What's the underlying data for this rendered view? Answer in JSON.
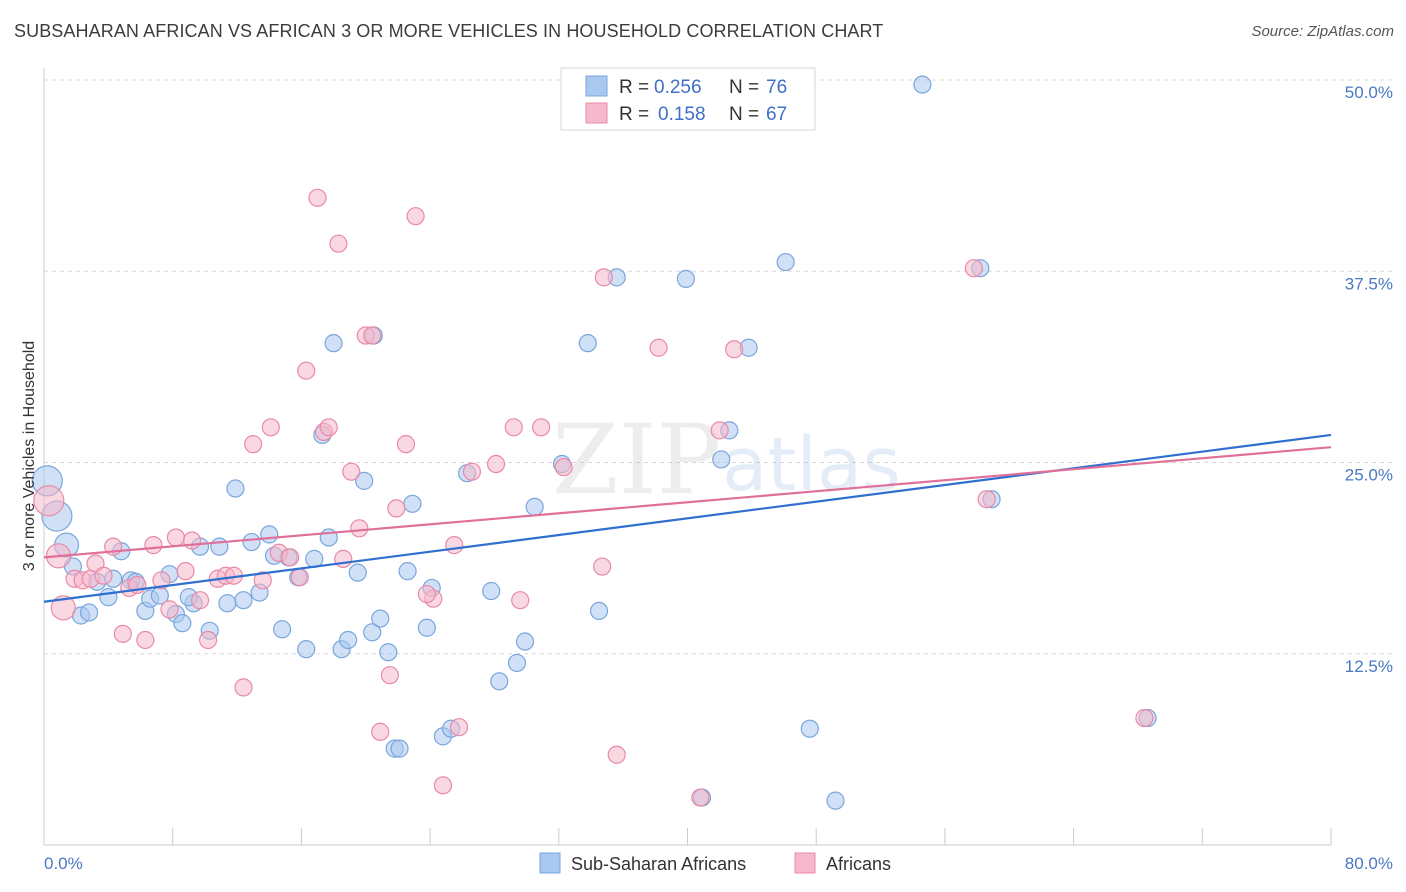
{
  "title": "SUBSAHARAN AFRICAN VS AFRICAN 3 OR MORE VEHICLES IN HOUSEHOLD CORRELATION CHART",
  "source": "Source: ZipAtlas.com",
  "watermark": {
    "zip": "ZIP",
    "atlas": "atlas"
  },
  "colors": {
    "blue_fill": "#a9c8f0",
    "blue_stroke": "#7aa6dc",
    "blue_line": "#2f6fd0",
    "pink_fill": "#f6b8cb",
    "pink_stroke": "#e88aa8",
    "pink_line": "#e0709a",
    "label": "#4a78c2",
    "grid": "#d8d8d8"
  },
  "legend": {
    "rows": [
      {
        "r_label": "R = ",
        "r_value": "0.256",
        "n_label": "N = ",
        "n_value": "76"
      },
      {
        "r_label": "R = ",
        "r_value": "0.158",
        "n_label": "N = ",
        "n_value": "67"
      }
    ]
  },
  "chart_data": {
    "type": "scatter",
    "title": "SUBSAHARAN AFRICAN VS AFRICAN 3 OR MORE VEHICLES IN HOUSEHOLD CORRELATION CHART",
    "xlabel": "",
    "ylabel": "3 or more Vehicles in Household",
    "xlim": [
      0,
      80
    ],
    "ylim": [
      0,
      50
    ],
    "x_tick_labels": [
      "0.0%",
      "80.0%"
    ],
    "y_ticks": [
      12.5,
      25.0,
      37.5,
      50.0
    ],
    "y_tick_labels": [
      "12.5%",
      "25.0%",
      "37.5%",
      "50.0%"
    ],
    "grid": true,
    "legend_position": "bottom",
    "series": [
      {
        "name": "Sub-Saharan Africans",
        "color": "#a9c8f0",
        "trend": [
          [
            0,
            15.9
          ],
          [
            80,
            26.8
          ]
        ],
        "points": [
          [
            0.2,
            23.8
          ],
          [
            0.8,
            21.5
          ],
          [
            1.4,
            19.6
          ],
          [
            1.8,
            18.2
          ],
          [
            2.3,
            15.0
          ],
          [
            2.8,
            15.2
          ],
          [
            3.3,
            17.2
          ],
          [
            4.0,
            16.2
          ],
          [
            4.3,
            17.4
          ],
          [
            4.8,
            19.2
          ],
          [
            5.4,
            17.3
          ],
          [
            5.7,
            17.2
          ],
          [
            6.3,
            15.3
          ],
          [
            6.6,
            16.1
          ],
          [
            7.2,
            16.3
          ],
          [
            7.8,
            17.7
          ],
          [
            8.2,
            15.1
          ],
          [
            8.6,
            14.5
          ],
          [
            9.3,
            15.8
          ],
          [
            9.7,
            19.5
          ],
          [
            10.3,
            14.0
          ],
          [
            10.9,
            19.5
          ],
          [
            11.4,
            15.8
          ],
          [
            11.9,
            23.3
          ],
          [
            12.4,
            16.0
          ],
          [
            12.9,
            19.8
          ],
          [
            13.4,
            16.5
          ],
          [
            14.0,
            20.3
          ],
          [
            14.8,
            14.1
          ],
          [
            15.2,
            18.8
          ],
          [
            15.8,
            17.5
          ],
          [
            16.3,
            12.8
          ],
          [
            16.8,
            18.7
          ],
          [
            17.3,
            26.8
          ],
          [
            17.7,
            20.1
          ],
          [
            18.0,
            32.8
          ],
          [
            18.5,
            12.8
          ],
          [
            18.9,
            13.4
          ],
          [
            19.5,
            17.8
          ],
          [
            19.9,
            23.8
          ],
          [
            20.4,
            13.9
          ],
          [
            20.9,
            14.8
          ],
          [
            21.4,
            12.6
          ],
          [
            21.8,
            6.3
          ],
          [
            22.1,
            6.3
          ],
          [
            22.6,
            17.9
          ],
          [
            22.9,
            22.3
          ],
          [
            23.8,
            14.2
          ],
          [
            24.1,
            16.8
          ],
          [
            24.8,
            7.1
          ],
          [
            25.3,
            7.6
          ],
          [
            26.3,
            24.3
          ],
          [
            28.3,
            10.7
          ],
          [
            29.4,
            11.9
          ],
          [
            29.9,
            13.3
          ],
          [
            32.2,
            24.9
          ],
          [
            33.8,
            32.8
          ],
          [
            35.6,
            37.1
          ],
          [
            39.9,
            37.0
          ],
          [
            40.9,
            3.1
          ],
          [
            42.1,
            25.2
          ],
          [
            42.6,
            27.1
          ],
          [
            43.8,
            32.5
          ],
          [
            46.1,
            38.1
          ],
          [
            47.6,
            7.6
          ],
          [
            49.2,
            2.9
          ],
          [
            54.6,
            49.7
          ],
          [
            58.2,
            37.7
          ],
          [
            58.9,
            22.6
          ],
          [
            68.6,
            8.3
          ],
          [
            20.5,
            33.3
          ],
          [
            14.3,
            18.9
          ],
          [
            9.0,
            16.2
          ],
          [
            27.8,
            16.6
          ],
          [
            34.5,
            15.3
          ],
          [
            30.5,
            22.1
          ]
        ]
      },
      {
        "name": "Africans",
        "color": "#f6b8cb",
        "trend": [
          [
            0,
            18.8
          ],
          [
            80,
            26.0
          ]
        ],
        "points": [
          [
            0.3,
            22.5
          ],
          [
            0.9,
            18.9
          ],
          [
            1.2,
            15.5
          ],
          [
            1.9,
            17.4
          ],
          [
            2.4,
            17.3
          ],
          [
            2.9,
            17.4
          ],
          [
            3.2,
            18.4
          ],
          [
            3.7,
            17.6
          ],
          [
            4.3,
            19.5
          ],
          [
            4.9,
            13.8
          ],
          [
            5.3,
            16.8
          ],
          [
            5.8,
            17.0
          ],
          [
            6.3,
            13.4
          ],
          [
            6.8,
            19.6
          ],
          [
            7.3,
            17.3
          ],
          [
            7.8,
            15.4
          ],
          [
            8.2,
            20.1
          ],
          [
            8.8,
            17.9
          ],
          [
            9.2,
            19.9
          ],
          [
            9.7,
            16.0
          ],
          [
            10.2,
            13.4
          ],
          [
            10.8,
            17.4
          ],
          [
            11.3,
            17.6
          ],
          [
            11.8,
            17.6
          ],
          [
            12.4,
            10.3
          ],
          [
            13.0,
            26.2
          ],
          [
            13.6,
            17.3
          ],
          [
            14.1,
            27.3
          ],
          [
            14.6,
            19.1
          ],
          [
            15.3,
            18.8
          ],
          [
            15.9,
            17.5
          ],
          [
            16.3,
            31.0
          ],
          [
            17.0,
            42.3
          ],
          [
            17.4,
            27.0
          ],
          [
            17.7,
            27.3
          ],
          [
            18.3,
            39.3
          ],
          [
            18.6,
            18.7
          ],
          [
            19.1,
            24.4
          ],
          [
            19.6,
            20.7
          ],
          [
            20.0,
            33.3
          ],
          [
            20.4,
            33.3
          ],
          [
            20.9,
            7.4
          ],
          [
            21.5,
            11.1
          ],
          [
            21.9,
            22.0
          ],
          [
            22.5,
            26.2
          ],
          [
            23.1,
            41.1
          ],
          [
            24.2,
            16.1
          ],
          [
            24.8,
            3.9
          ],
          [
            25.8,
            7.7
          ],
          [
            26.6,
            24.4
          ],
          [
            28.1,
            24.9
          ],
          [
            29.6,
            16.0
          ],
          [
            30.9,
            27.3
          ],
          [
            32.3,
            24.7
          ],
          [
            34.8,
            37.1
          ],
          [
            38.2,
            32.5
          ],
          [
            42.0,
            27.1
          ],
          [
            40.8,
            3.1
          ],
          [
            42.9,
            32.4
          ],
          [
            35.6,
            5.9
          ],
          [
            34.7,
            18.2
          ],
          [
            25.5,
            19.6
          ],
          [
            23.8,
            16.4
          ],
          [
            29.2,
            27.3
          ],
          [
            57.8,
            37.7
          ],
          [
            58.6,
            22.6
          ],
          [
            68.4,
            8.3
          ]
        ]
      }
    ]
  }
}
